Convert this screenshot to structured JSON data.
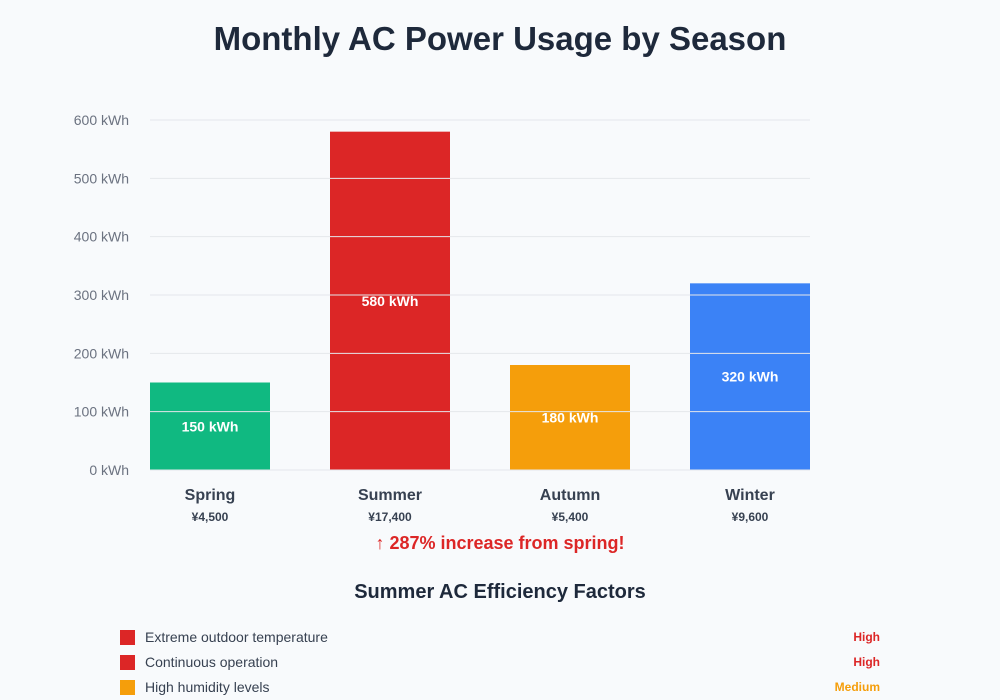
{
  "chart_data": {
    "type": "bar",
    "title": "Monthly AC Power Usage by Season",
    "categories": [
      "Spring",
      "Summer",
      "Autumn",
      "Winter"
    ],
    "values": [
      150,
      580,
      180,
      320
    ],
    "unit": "kWh",
    "data_labels": [
      "150 kWh",
      "580 kWh",
      "180 kWh",
      "320 kWh"
    ],
    "costs": [
      "¥4,500",
      "¥17,400",
      "¥5,400",
      "¥9,600"
    ],
    "colors": [
      "#10b981",
      "#dc2626",
      "#f59e0b",
      "#3b82f6"
    ],
    "ylim": [
      0,
      600
    ],
    "yticks": [
      0,
      100,
      200,
      300,
      400,
      500,
      600
    ],
    "ytick_labels": [
      "0 kWh",
      "100 kWh",
      "200 kWh",
      "300 kWh",
      "400 kWh",
      "500 kWh",
      "600 kWh"
    ],
    "grid": true,
    "annotation": {
      "arrow": "↑",
      "text": "287% increase from spring!"
    }
  },
  "factors": {
    "title": "Summer AC Efficiency Factors",
    "items": [
      {
        "label": "Extreme outdoor temperature",
        "level": "High",
        "color": "#dc2626"
      },
      {
        "label": "Continuous operation",
        "level": "High",
        "color": "#dc2626"
      },
      {
        "label": "High humidity levels",
        "level": "Medium",
        "color": "#f59e0b"
      }
    ]
  }
}
